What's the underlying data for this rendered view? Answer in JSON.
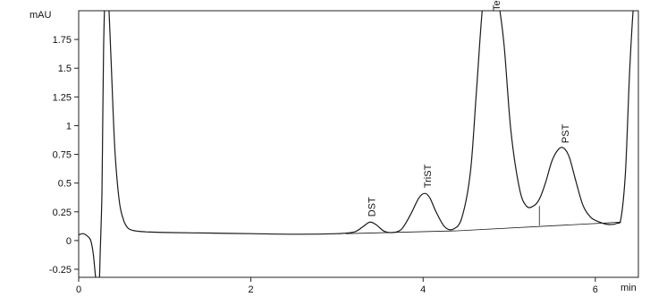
{
  "chart_data": {
    "type": "line",
    "y_unit": "mAU",
    "x_unit": "min",
    "xlim": [
      0,
      6.5
    ],
    "ylim": [
      -0.32,
      2.0
    ],
    "x_ticks": [
      0,
      2,
      4,
      6
    ],
    "y_ticks": [
      -0.25,
      0,
      0.25,
      0.5,
      0.75,
      1,
      1.25,
      1.5,
      1.75
    ],
    "x_tick_labels": [
      "0",
      "2",
      "4",
      "6"
    ],
    "y_tick_labels": [
      "-0.25",
      "0",
      "0.25",
      "0.5",
      "0.75",
      "1",
      "1.25",
      "1.5",
      "1.75"
    ],
    "grid": false,
    "series": [
      {
        "x": [
          0.0,
          0.05,
          0.1,
          0.14,
          0.17,
          0.2,
          0.22,
          0.24,
          0.25,
          0.27,
          0.28,
          0.29,
          0.3,
          0.31,
          0.33,
          0.35,
          0.38,
          0.42,
          0.47,
          0.52,
          0.57,
          0.62,
          0.7,
          0.8,
          1.0,
          1.5,
          2.0,
          2.5,
          3.0,
          3.2,
          3.3,
          3.38,
          3.45,
          3.55,
          3.65,
          3.75,
          3.85,
          3.95,
          4.02,
          4.08,
          4.15,
          4.25,
          4.35,
          4.45,
          4.55,
          4.62,
          4.7,
          4.78,
          4.82,
          4.87,
          4.94,
          5.02,
          5.12,
          5.2,
          5.28,
          5.35,
          5.42,
          5.5,
          5.58,
          5.64,
          5.7,
          5.78,
          5.86,
          5.95,
          6.05,
          6.15,
          6.25,
          6.3,
          6.35,
          6.4,
          6.45,
          6.5
        ],
        "y": [
          0.05,
          0.06,
          0.04,
          0.0,
          -0.12,
          -0.35,
          -0.45,
          -0.35,
          -0.1,
          0.4,
          1.1,
          1.7,
          2.05,
          2.2,
          2.2,
          2.05,
          1.5,
          0.8,
          0.35,
          0.18,
          0.11,
          0.09,
          0.08,
          0.075,
          0.07,
          0.065,
          0.06,
          0.055,
          0.06,
          0.075,
          0.12,
          0.16,
          0.14,
          0.08,
          0.07,
          0.1,
          0.22,
          0.37,
          0.41,
          0.37,
          0.25,
          0.12,
          0.1,
          0.2,
          0.6,
          1.3,
          2.1,
          2.2,
          2.2,
          2.1,
          1.7,
          0.95,
          0.45,
          0.3,
          0.3,
          0.36,
          0.5,
          0.7,
          0.8,
          0.8,
          0.72,
          0.5,
          0.3,
          0.2,
          0.16,
          0.14,
          0.15,
          0.2,
          0.6,
          1.5,
          2.1,
          2.2
        ]
      }
    ],
    "baselines": [
      {
        "x": [
          3.1,
          4.4
        ],
        "y": [
          0.06,
          0.085
        ]
      },
      {
        "x": [
          4.4,
          6.3
        ],
        "y": [
          0.085,
          0.16
        ]
      }
    ],
    "peak_markers": [
      {
        "x": 5.35,
        "y_bottom": 0.13,
        "y_top": 0.3
      }
    ],
    "peaks": [
      {
        "label": "DST",
        "x": 3.4,
        "y": 0.16
      },
      {
        "label": "TriST",
        "x": 4.05,
        "y": 0.41
      },
      {
        "label": "TetraST",
        "x": 4.85,
        "y": 2.05
      },
      {
        "label": "PST",
        "x": 5.65,
        "y": 0.8
      }
    ]
  }
}
